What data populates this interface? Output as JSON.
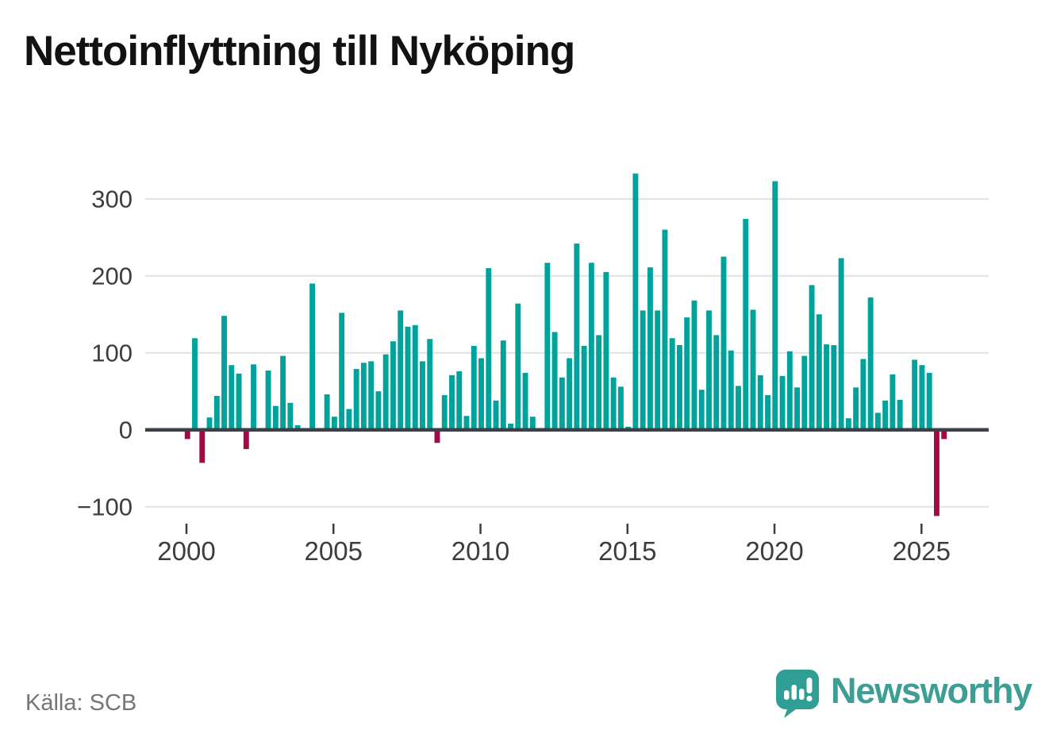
{
  "title": "Nettoinflyttning till Nyköping",
  "source": "Källa: SCB",
  "branding": {
    "name": "Newsworthy",
    "icon": "bar-chart-speech-bubble-icon"
  },
  "colors": {
    "positive_bar": "#00a39b",
    "negative_bar": "#a00b45",
    "zero_axis": "#3b4146",
    "gridline": "#e1e1e1",
    "axis_text": "#3d3d3d",
    "title_text": "#121212",
    "source_text": "#757575",
    "brand_teal": "#3d9e96"
  },
  "chart_data": {
    "type": "bar",
    "title": "Nettoinflyttning till Nyköping",
    "xlabel": "",
    "ylabel": "",
    "start_year": 2000,
    "frequency": "quarterly",
    "grid": true,
    "legend": false,
    "ylim": [
      -130,
      345
    ],
    "y_ticks": [
      300,
      200,
      100,
      0,
      -100
    ],
    "x_tick_labels": [
      "2000",
      "2005",
      "2010",
      "2015",
      "2020",
      "2025"
    ],
    "positive_color": "#00a39b",
    "negative_color": "#a00b45",
    "values": [
      -12,
      119,
      -43,
      16,
      44,
      148,
      84,
      73,
      -25,
      85,
      0,
      77,
      31,
      96,
      35,
      6,
      0,
      190,
      0,
      46,
      17,
      152,
      27,
      79,
      87,
      89,
      50,
      98,
      115,
      155,
      134,
      136,
      89,
      118,
      -17,
      45,
      71,
      76,
      18,
      109,
      93,
      210,
      38,
      116,
      8,
      164,
      74,
      17,
      0,
      217,
      127,
      68,
      93,
      242,
      109,
      217,
      123,
      205,
      68,
      56,
      4,
      333,
      155,
      211,
      155,
      260,
      119,
      110,
      146,
      168,
      52,
      155,
      123,
      225,
      103,
      57,
      274,
      156,
      71,
      45,
      323,
      70,
      102,
      55,
      96,
      188,
      150,
      111,
      110,
      223,
      15,
      55,
      92,
      172,
      22,
      38,
      72,
      39,
      0,
      91,
      84,
      74,
      -112,
      -12
    ]
  }
}
